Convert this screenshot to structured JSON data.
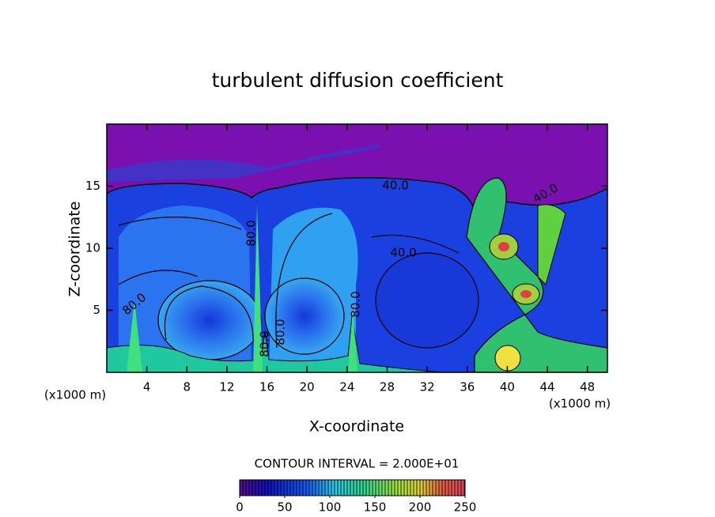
{
  "chart_data": {
    "type": "contour",
    "title": "turbulent diffusion coefficient",
    "xlabel": "X-coordinate",
    "ylabel": "Z-coordinate",
    "x_unit": "(x1000 m)",
    "y_unit": "(x1000 m)",
    "xlim": [
      0,
      50
    ],
    "xticks": [
      4,
      8,
      12,
      16,
      20,
      24,
      28,
      32,
      36,
      40,
      44,
      48
    ],
    "ylim": [
      0,
      20
    ],
    "yticks": [
      5,
      10,
      15
    ],
    "contour_interval": "CONTOUR INTERVAL = 2.000E+01",
    "contour_labels": [
      "40.0",
      "40.0",
      "80.0",
      "40.0",
      "80.0",
      "80.0",
      "80.0",
      "80.0"
    ],
    "clim": [
      0,
      250
    ],
    "cbar_ticks": [
      0,
      50,
      100,
      150,
      200,
      250
    ]
  }
}
